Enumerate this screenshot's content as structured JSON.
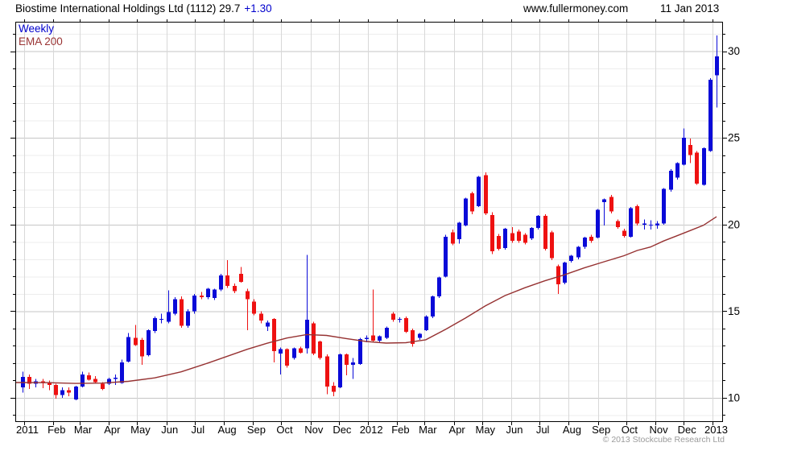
{
  "header": {
    "title": "Biostime International Holdings Ltd (1112) 29.7",
    "change": "+1.30",
    "site": "www.fullermoney.com",
    "date": "11 Jan 2013"
  },
  "legend": {
    "timeframe": "Weekly",
    "indicator": "EMA 200"
  },
  "footer": {
    "copyright": "© 2013 Stockcube Research Ltd"
  },
  "colors": {
    "up_candle": "#0a0ad8",
    "down_candle": "#ee1111",
    "ema_line": "#963232",
    "legend_timeframe": "#0000cc",
    "legend_indicator": "#993333",
    "change_text": "#0000cc",
    "title_text": "#000000",
    "grid_major": "#c6c6c6",
    "grid_minor": "#ededed",
    "grid_month": "#d8d8d8",
    "axis_frame": "#000000",
    "copyright_text": "#9b9b9b"
  },
  "chart_data": {
    "type": "candlestick",
    "title": "Biostime International Holdings Ltd (1112)",
    "ticker": "1112",
    "timeframe": "Weekly",
    "last_close": 29.7,
    "change": 1.3,
    "legend_position": "top-left",
    "grid": true,
    "y_axis": {
      "side": "right",
      "range": [
        8.65,
        31.7
      ],
      "tick_labels": [
        10,
        15,
        20,
        25,
        30
      ],
      "minor_step": 1
    },
    "x_axis": {
      "labels": [
        "2011",
        "Feb",
        "Mar",
        "Apr",
        "May",
        "Jun",
        "Jul",
        "Aug",
        "Sep",
        "Oct",
        "Nov",
        "Dec",
        "2012",
        "Feb",
        "Mar",
        "Apr",
        "May",
        "Jun",
        "Jul",
        "Aug",
        "Sep",
        "Oct",
        "Nov",
        "Dec",
        "2013"
      ],
      "month_start_days": [
        0,
        31,
        59,
        90,
        120,
        151,
        181,
        212,
        243,
        273,
        304,
        334,
        365,
        396,
        425,
        456,
        486,
        517,
        547,
        578,
        609,
        639,
        670,
        700,
        731
      ]
    },
    "weeks": 106,
    "candles_format": [
      "open",
      "high",
      "low",
      "close"
    ],
    "candles": [
      [
        10.6,
        11.5,
        10.3,
        11.2
      ],
      [
        11.2,
        11.35,
        10.5,
        10.8
      ],
      [
        10.8,
        11.1,
        10.6,
        10.95
      ],
      [
        10.95,
        11.1,
        10.55,
        10.9
      ],
      [
        10.9,
        11.0,
        10.45,
        10.75
      ],
      [
        10.75,
        10.8,
        9.95,
        10.15
      ],
      [
        10.15,
        10.6,
        10.0,
        10.45
      ],
      [
        10.45,
        10.6,
        10.1,
        10.3
      ],
      [
        9.9,
        10.7,
        9.85,
        10.65
      ],
      [
        10.65,
        11.5,
        10.6,
        11.35
      ],
      [
        11.3,
        11.45,
        11.0,
        11.05
      ],
      [
        11.1,
        11.25,
        10.85,
        10.9
      ],
      [
        10.8,
        10.9,
        10.45,
        10.5
      ],
      [
        10.8,
        11.15,
        10.75,
        11.1
      ],
      [
        11.1,
        11.35,
        10.75,
        11.15
      ],
      [
        10.85,
        12.2,
        10.8,
        12.05
      ],
      [
        12.1,
        13.75,
        12.05,
        13.5
      ],
      [
        13.45,
        14.2,
        13.0,
        13.05
      ],
      [
        13.35,
        13.45,
        11.9,
        12.4
      ],
      [
        12.45,
        13.95,
        12.4,
        13.9
      ],
      [
        13.85,
        14.7,
        13.75,
        14.6
      ],
      [
        14.5,
        14.85,
        14.3,
        14.55
      ],
      [
        14.4,
        16.2,
        14.3,
        14.95
      ],
      [
        14.85,
        15.8,
        14.75,
        15.7
      ],
      [
        15.7,
        15.85,
        14.05,
        14.15
      ],
      [
        14.15,
        15.1,
        14.05,
        15.0
      ],
      [
        15.0,
        16.0,
        14.85,
        15.9
      ],
      [
        15.9,
        16.1,
        15.7,
        15.8
      ],
      [
        15.8,
        16.35,
        15.7,
        16.3
      ],
      [
        15.75,
        16.3,
        15.65,
        16.25
      ],
      [
        16.25,
        17.15,
        16.15,
        17.05
      ],
      [
        17.05,
        17.95,
        16.35,
        16.45
      ],
      [
        16.45,
        16.6,
        16.05,
        16.15
      ],
      [
        17.15,
        17.55,
        16.65,
        16.7
      ],
      [
        16.15,
        16.3,
        13.9,
        15.7
      ],
      [
        15.55,
        15.7,
        14.75,
        14.85
      ],
      [
        14.85,
        15.0,
        14.3,
        14.45
      ],
      [
        14.1,
        14.45,
        13.85,
        14.35
      ],
      [
        14.55,
        14.6,
        12.05,
        12.7
      ],
      [
        12.55,
        12.9,
        11.35,
        12.8
      ],
      [
        12.8,
        12.85,
        11.75,
        11.85
      ],
      [
        12.3,
        12.9,
        12.2,
        12.85
      ],
      [
        12.85,
        12.95,
        12.55,
        12.6
      ],
      [
        12.85,
        18.25,
        12.55,
        14.5
      ],
      [
        14.3,
        14.4,
        12.45,
        12.55
      ],
      [
        13.25,
        13.3,
        12.2,
        12.3
      ],
      [
        12.4,
        12.5,
        10.2,
        10.65
      ],
      [
        10.7,
        10.9,
        10.1,
        10.35
      ],
      [
        10.6,
        12.55,
        10.55,
        12.5
      ],
      [
        12.5,
        12.55,
        11.3,
        11.9
      ],
      [
        11.9,
        12.3,
        11.1,
        12.05
      ],
      [
        11.95,
        13.45,
        11.9,
        13.4
      ],
      [
        13.4,
        13.6,
        13.2,
        13.45
      ],
      [
        13.6,
        16.25,
        13.2,
        13.3
      ],
      [
        13.3,
        13.6,
        13.2,
        13.55
      ],
      [
        13.45,
        14.1,
        13.4,
        14.05
      ],
      [
        14.85,
        14.95,
        14.4,
        14.5
      ],
      [
        14.5,
        14.65,
        14.35,
        14.55
      ],
      [
        14.6,
        14.7,
        13.75,
        13.8
      ],
      [
        13.9,
        14.0,
        12.95,
        13.1
      ],
      [
        13.45,
        13.75,
        13.35,
        13.7
      ],
      [
        13.9,
        14.75,
        13.85,
        14.7
      ],
      [
        14.7,
        15.9,
        14.6,
        15.85
      ],
      [
        15.85,
        17.0,
        15.75,
        16.95
      ],
      [
        17.0,
        19.4,
        16.95,
        19.3
      ],
      [
        19.55,
        19.7,
        18.8,
        18.9
      ],
      [
        19.15,
        20.15,
        18.9,
        20.1
      ],
      [
        19.95,
        21.55,
        19.9,
        21.5
      ],
      [
        21.8,
        21.9,
        20.6,
        20.75
      ],
      [
        21.05,
        22.8,
        21.0,
        22.75
      ],
      [
        22.85,
        23.0,
        20.55,
        20.65
      ],
      [
        20.55,
        20.7,
        18.3,
        18.45
      ],
      [
        19.35,
        19.45,
        18.5,
        18.6
      ],
      [
        18.65,
        19.8,
        18.55,
        19.75
      ],
      [
        19.5,
        19.85,
        18.95,
        19.05
      ],
      [
        19.6,
        19.7,
        18.95,
        19.05
      ],
      [
        19.4,
        19.5,
        18.85,
        18.95
      ],
      [
        19.2,
        19.85,
        19.1,
        19.8
      ],
      [
        19.8,
        20.55,
        19.7,
        20.5
      ],
      [
        20.5,
        20.6,
        18.5,
        18.6
      ],
      [
        19.55,
        19.65,
        17.95,
        18.05
      ],
      [
        17.6,
        17.7,
        16.0,
        16.55
      ],
      [
        16.65,
        17.85,
        16.55,
        17.8
      ],
      [
        17.9,
        18.25,
        17.8,
        18.2
      ],
      [
        18.1,
        18.75,
        18.0,
        18.7
      ],
      [
        18.7,
        19.3,
        18.6,
        19.25
      ],
      [
        19.3,
        19.4,
        18.95,
        19.05
      ],
      [
        19.25,
        20.9,
        19.2,
        20.85
      ],
      [
        21.3,
        21.5,
        19.95,
        21.45
      ],
      [
        21.6,
        21.7,
        20.65,
        20.75
      ],
      [
        20.2,
        20.3,
        19.75,
        19.85
      ],
      [
        19.65,
        19.75,
        19.25,
        19.35
      ],
      [
        19.3,
        21.0,
        19.25,
        20.95
      ],
      [
        21.05,
        21.15,
        19.95,
        20.05
      ],
      [
        20.0,
        20.3,
        19.7,
        20.05
      ],
      [
        20.0,
        20.25,
        19.7,
        20.0
      ],
      [
        19.95,
        20.2,
        19.75,
        20.05
      ],
      [
        20.05,
        22.1,
        20.0,
        22.05
      ],
      [
        22.0,
        23.2,
        21.9,
        23.1
      ],
      [
        22.7,
        23.6,
        22.6,
        23.55
      ],
      [
        23.45,
        25.55,
        23.4,
        25.0
      ],
      [
        24.6,
        24.95,
        23.55,
        24.0
      ],
      [
        24.15,
        24.25,
        22.3,
        22.35
      ],
      [
        22.3,
        24.45,
        22.25,
        24.4
      ],
      [
        24.25,
        28.45,
        24.2,
        28.35
      ],
      [
        28.6,
        30.9,
        26.75,
        29.7
      ]
    ],
    "overlay": {
      "name": "EMA 200",
      "points": [
        [
          0,
          10.88
        ],
        [
          4,
          10.87
        ],
        [
          8,
          10.83
        ],
        [
          12,
          10.85
        ],
        [
          16,
          10.95
        ],
        [
          20,
          11.15
        ],
        [
          24,
          11.5
        ],
        [
          28,
          12.0
        ],
        [
          31,
          12.4
        ],
        [
          34,
          12.8
        ],
        [
          37,
          13.15
        ],
        [
          40,
          13.45
        ],
        [
          43,
          13.65
        ],
        [
          46,
          13.6
        ],
        [
          49,
          13.42
        ],
        [
          52,
          13.25
        ],
        [
          55,
          13.16
        ],
        [
          58,
          13.18
        ],
        [
          61,
          13.35
        ],
        [
          64,
          13.95
        ],
        [
          67,
          14.6
        ],
        [
          70,
          15.3
        ],
        [
          73,
          15.9
        ],
        [
          76,
          16.35
        ],
        [
          79,
          16.75
        ],
        [
          82,
          17.1
        ],
        [
          85,
          17.5
        ],
        [
          88,
          17.85
        ],
        [
          91,
          18.2
        ],
        [
          93,
          18.5
        ],
        [
          95,
          18.7
        ],
        [
          97,
          19.05
        ],
        [
          99,
          19.35
        ],
        [
          101,
          19.65
        ],
        [
          103,
          19.95
        ],
        [
          105,
          20.45
        ]
      ]
    }
  }
}
